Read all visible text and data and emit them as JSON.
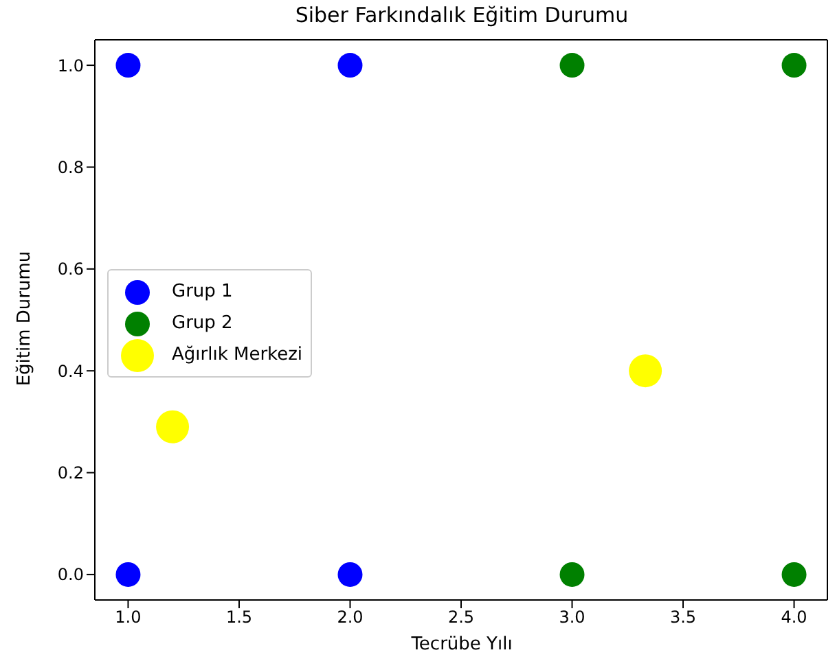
{
  "chart_data": {
    "type": "scatter",
    "title": "Siber Farkındalık Eğitim Durumu",
    "xlabel": "Tecrübe Yılı",
    "ylabel": "Eğitim Durumu",
    "series": [
      {
        "name": "Grup 1",
        "color": "#0000ff",
        "x": [
          1,
          2,
          1,
          2
        ],
        "values": [
          1,
          1,
          0,
          0
        ]
      },
      {
        "name": "Grup 2",
        "color": "#008000",
        "x": [
          3,
          4,
          3,
          4
        ],
        "values": [
          1,
          1,
          0,
          0
        ]
      },
      {
        "name": "Ağırlık Merkezi",
        "color": "#ffff00",
        "x": [
          1.2,
          3.33
        ],
        "values": [
          0.29,
          0.4
        ]
      }
    ],
    "xlim": [
      0.85,
      4.15
    ],
    "ylim": [
      -0.05,
      1.05
    ],
    "xticks": [
      {
        "value": 1,
        "label": "1.0"
      },
      {
        "value": 1.5,
        "label": "1.5"
      },
      {
        "value": 2,
        "label": "2.0"
      },
      {
        "value": 2.5,
        "label": "2.5"
      },
      {
        "value": 3,
        "label": "3.0"
      },
      {
        "value": 3.5,
        "label": "3.5"
      },
      {
        "value": 4,
        "label": "4.0"
      }
    ],
    "yticks": [
      {
        "value": 0,
        "label": "0.0"
      },
      {
        "value": 0.2,
        "label": "0.2"
      },
      {
        "value": 0.4,
        "label": "0.4"
      },
      {
        "value": 0.6,
        "label": "0.6"
      },
      {
        "value": 0.8,
        "label": "0.8"
      },
      {
        "value": 1,
        "label": "1.0"
      }
    ],
    "marker": "circle",
    "legend": "center left"
  }
}
